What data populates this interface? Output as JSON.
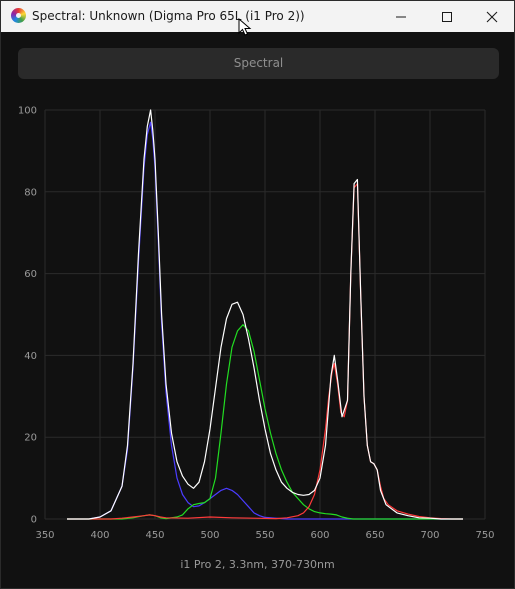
{
  "window": {
    "title": "Spectral: Unknown (Digma Pro 65L (i1 Pro 2))"
  },
  "tab": {
    "label": "Spectral"
  },
  "caption": "i1 Pro 2, 3.3nm, 370-730nm",
  "colors": {
    "white": "#ffffff",
    "blue": "#4b3cff",
    "green": "#22dd22",
    "red": "#ff3a3a",
    "grid": "#2b2b2b"
  },
  "chart_data": {
    "type": "line",
    "xlabel": "",
    "ylabel": "",
    "xlim": [
      350,
      750
    ],
    "ylim": [
      0,
      100
    ],
    "x_ticks": [
      350,
      400,
      450,
      500,
      550,
      600,
      650,
      700,
      750
    ],
    "y_ticks": [
      0,
      20,
      40,
      60,
      80,
      100
    ],
    "grid": true,
    "series": [
      {
        "color": "white",
        "x": [
          370,
          380,
          390,
          400,
          410,
          420,
          425,
          430,
          435,
          440,
          443,
          446,
          448,
          450,
          453,
          456,
          460,
          465,
          470,
          475,
          480,
          485,
          490,
          495,
          500,
          505,
          510,
          515,
          520,
          525,
          530,
          535,
          540,
          545,
          550,
          555,
          560,
          565,
          570,
          575,
          580,
          585,
          590,
          595,
          600,
          605,
          610,
          613,
          616,
          620,
          625,
          628,
          631,
          634,
          637,
          640,
          643,
          646,
          649,
          652,
          655,
          660,
          670,
          680,
          690,
          700,
          710,
          720,
          730
        ],
        "y": [
          0,
          0,
          0,
          0.5,
          2,
          8,
          18,
          38,
          65,
          88,
          96,
          100,
          95,
          88,
          70,
          50,
          33,
          21,
          14,
          10.5,
          8.5,
          7.5,
          9,
          14,
          22,
          32,
          42,
          49,
          52.5,
          53,
          50,
          44,
          37,
          29,
          22,
          16,
          12,
          9,
          7.5,
          6.5,
          6,
          5.8,
          6,
          7,
          10,
          18,
          35,
          40,
          34,
          25,
          29,
          60,
          82,
          83,
          55,
          30,
          18,
          14,
          13.5,
          12,
          7,
          3.5,
          1.5,
          0.8,
          0.3,
          0.2,
          0,
          0,
          0
        ]
      },
      {
        "color": "blue",
        "x": [
          370,
          380,
          390,
          400,
          410,
          420,
          425,
          430,
          435,
          440,
          443,
          446,
          448,
          450,
          453,
          456,
          460,
          465,
          470,
          475,
          480,
          485,
          490,
          495,
          500,
          505,
          510,
          515,
          520,
          525,
          530,
          535,
          540,
          545,
          550,
          560,
          570,
          580,
          600,
          620,
          640,
          660,
          690,
          730
        ],
        "y": [
          0,
          0,
          0,
          0.5,
          2,
          8,
          17,
          37,
          63,
          86,
          94,
          97,
          93,
          86,
          68,
          48,
          31,
          18,
          10,
          6,
          4,
          3,
          3.2,
          4,
          5,
          6,
          7,
          7.5,
          7,
          6,
          4.5,
          3,
          1.5,
          0.8,
          0.4,
          0.2,
          0,
          0,
          0,
          0,
          0,
          0,
          0,
          0
        ]
      },
      {
        "color": "green",
        "x": [
          370,
          400,
          420,
          430,
          440,
          445,
          450,
          455,
          460,
          470,
          475,
          480,
          485,
          490,
          495,
          500,
          505,
          510,
          515,
          520,
          525,
          530,
          535,
          540,
          545,
          550,
          555,
          560,
          565,
          570,
          575,
          580,
          585,
          590,
          595,
          600,
          605,
          610,
          615,
          620,
          625,
          630,
          640,
          660,
          690,
          730
        ],
        "y": [
          0,
          0,
          0,
          0.3,
          0.8,
          1,
          0.8,
          0.3,
          0.1,
          0.5,
          1,
          2.5,
          3.5,
          3.8,
          4,
          5,
          10,
          21,
          33,
          42,
          46,
          47.5,
          46,
          41,
          34,
          27,
          21,
          16,
          12,
          9,
          6.5,
          5,
          3.5,
          2.5,
          1.8,
          1.5,
          1.3,
          1.2,
          1,
          0.5,
          0.2,
          0,
          0,
          0,
          0,
          0
        ]
      },
      {
        "color": "red",
        "x": [
          370,
          410,
          420,
          430,
          440,
          445,
          450,
          455,
          460,
          480,
          500,
          520,
          540,
          560,
          570,
          580,
          585,
          590,
          595,
          600,
          605,
          608,
          611,
          613,
          616,
          619,
          622,
          625,
          628,
          631,
          634,
          637,
          640,
          643,
          646,
          649,
          652,
          655,
          658,
          662,
          670,
          680,
          690,
          700,
          710,
          720,
          730
        ],
        "y": [
          0,
          0,
          0.2,
          0.5,
          0.8,
          1,
          0.8,
          0.5,
          0.3,
          0.2,
          0.5,
          0.3,
          0.2,
          0.1,
          0.3,
          0.8,
          1.5,
          3,
          6,
          12,
          22,
          30,
          36,
          38,
          33,
          26,
          25,
          29,
          60,
          81,
          82,
          55,
          30,
          18,
          14,
          13.5,
          12,
          8,
          5,
          3.5,
          2,
          1.2,
          0.6,
          0.3,
          0.1,
          0,
          0
        ]
      }
    ]
  }
}
